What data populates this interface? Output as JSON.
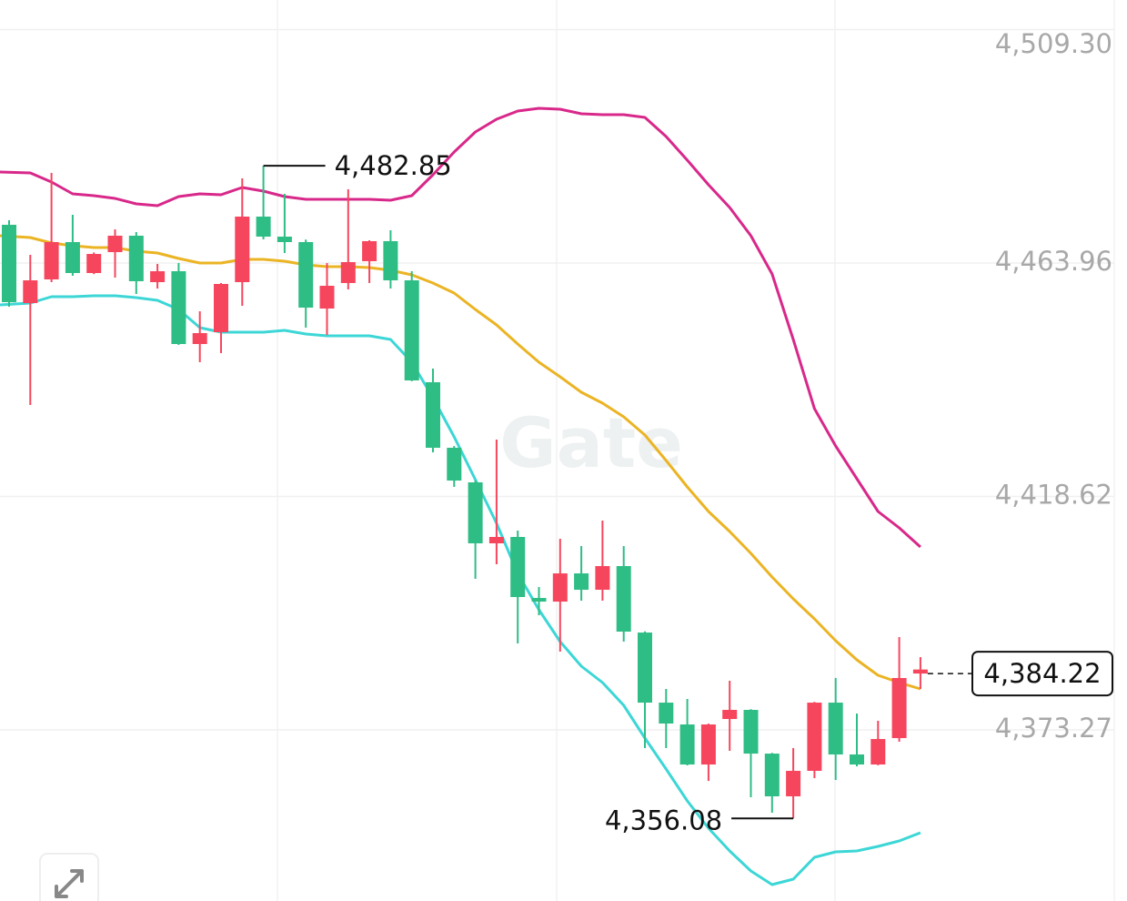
{
  "chart_data": {
    "type": "candlestick",
    "watermark": "Gate",
    "ylim": [
      4340.04,
      4515.04
    ],
    "yticks": [
      {
        "value": 4509.3,
        "label": "4,509.30"
      },
      {
        "value": 4463.96,
        "label": "4,463.96"
      },
      {
        "value": 4418.62,
        "label": "4,418.62"
      },
      {
        "value": 4373.27,
        "label": "4,373.27"
      }
    ],
    "grid": true,
    "up_color": "#2ebd85",
    "down_color": "#f6465d",
    "open": [
      4456.35,
      4460.59,
      4468.02,
      4462.01,
      4465.72,
      4469.26,
      4460.42,
      4462.36,
      4448.22,
      4450.34,
      4459.89,
      4472.97,
      4469.08,
      4468.02,
      4455.29,
      4459.53,
      4464.13,
      4468.2,
      4460.59,
      4441.15,
      4428.07,
      4421.7,
      4409.51,
      4410.75,
      4399.08,
      4398.19,
      4403.67,
      4400.49,
      4405.09,
      4392.36,
      4378.57,
      4374.51,
      4366.55,
      4374.33,
      4377.16,
      4368.67,
      4360.37,
      4365.32,
      4378.57,
      4368.5,
      4366.55,
      4371.5,
      4383.35,
      4385.0
    ],
    "high": [
      4472.26,
      4465.54,
      4481.45,
      4473.32,
      4466.0,
      4470.49,
      4469.96,
      4463.78,
      4463.95,
      4454.58,
      4460.07,
      4480.39,
      4482.85,
      4477.39,
      4468.5,
      4463.95,
      4478.27,
      4468.37,
      4470.32,
      4462.36,
      4443.45,
      4428.4,
      4421.7,
      4429.66,
      4411.98,
      4401.02,
      4410.39,
      4408.98,
      4413.93,
      4408.98,
      4392.4,
      4381.22,
      4379.28,
      4374.5,
      4382.82,
      4377.3,
      4368.8,
      4369.73,
      4378.7,
      4383.35,
      4376.45,
      4375.04,
      4391.3,
      4387.41
    ],
    "low": [
      4455.47,
      4436.38,
      4460.24,
      4461.48,
      4461.8,
      4461.12,
      4457.94,
      4459.0,
      4448.04,
      4444.69,
      4446.45,
      4455.64,
      4468.55,
      4465.9,
      4451.4,
      4449.99,
      4458.83,
      4460.07,
      4459.0,
      4441.0,
      4427.18,
      4420.47,
      4402.61,
      4405.44,
      4390.06,
      4395.54,
      4388.47,
      4398.37,
      4398.37,
      4390.42,
      4369.73,
      4369.73,
      4366.37,
      4363.37,
      4369.2,
      4360.19,
      4357.18,
      4356.08,
      4363.9,
      4363.55,
      4366.2,
      4366.4,
      4370.97,
      4381.22
    ],
    "close": [
      4471.38,
      4456.17,
      4460.77,
      4468.02,
      4462.01,
      4466.07,
      4469.26,
      4460.24,
      4462.36,
      4448.22,
      4450.52,
      4460.24,
      4472.97,
      4469.08,
      4468.02,
      4455.11,
      4460.07,
      4464.31,
      4468.2,
      4460.59,
      4440.8,
      4428.07,
      4421.35,
      4409.51,
      4410.75,
      4398.9,
      4398.19,
      4403.67,
      4400.49,
      4405.09,
      4392.18,
      4378.57,
      4374.33,
      4366.55,
      4375.39,
      4377.16,
      4368.67,
      4360.37,
      4365.32,
      4378.57,
      4368.5,
      4366.55,
      4371.68,
      4384.22
    ],
    "lines": [
      {
        "color": "#d8288a",
        "values": [
          4481.63,
          4481.45,
          4479.69,
          4477.39,
          4477.03,
          4476.5,
          4475.44,
          4475.09,
          4476.86,
          4477.39,
          4477.21,
          4478.63,
          4477.92,
          4476.86,
          4476.33,
          4476.33,
          4476.33,
          4476.33,
          4476.15,
          4477.03,
          4481.1,
          4485.52,
          4489.41,
          4491.88,
          4493.47,
          4494.0,
          4493.83,
          4492.94,
          4492.77,
          4492.77,
          4492.24,
          4488.52,
          4483.93,
          4479.16,
          4474.74,
          4469.26,
          4461.83,
          4449.1,
          4435.67,
          4428.42,
          4422.06,
          4415.69,
          4412.51,
          4408.8
        ]
      },
      {
        "color": "#ebb424",
        "values": [
          4469.26,
          4468.9,
          4467.84,
          4467.31,
          4466.96,
          4466.96,
          4466.25,
          4465.9,
          4464.84,
          4463.95,
          4463.95,
          4464.66,
          4464.66,
          4464.31,
          4463.6,
          4463.25,
          4463.25,
          4463.07,
          4462.54,
          4461.66,
          4460.06,
          4458.12,
          4454.94,
          4451.93,
          4448.22,
          4444.69,
          4441.86,
          4438.85,
          4436.73,
          4434.08,
          4430.54,
          4425.59,
          4420.47,
          4415.69,
          4411.81,
          4407.56,
          4402.97,
          4398.72,
          4394.84,
          4390.59,
          4386.88,
          4383.88,
          4382.46,
          4381.22
        ]
      },
      {
        "color": "#3dd6d6",
        "values": [
          4455.82,
          4456.17,
          4457.41,
          4457.41,
          4457.59,
          4457.59,
          4457.24,
          4456.71,
          4454.94,
          4451.4,
          4450.52,
          4450.52,
          4450.52,
          4450.87,
          4450.16,
          4449.81,
          4449.81,
          4449.81,
          4449.1,
          4444.69,
          4437.79,
          4430.19,
          4421.88,
          4413.4,
          4403.67,
          4396.6,
          4390.42,
          4385.64,
          4382.46,
          4378.04,
          4371.68,
          4365.67,
          4359.48,
          4354.18,
          4349.76,
          4345.87,
          4343.22,
          4344.28,
          4348.52,
          4349.58,
          4349.76,
          4350.64,
          4351.7,
          4353.29
        ]
      }
    ],
    "max_marker": {
      "value": 4482.85,
      "label": "4,482.85"
    },
    "min_marker": {
      "value": 4356.08,
      "label": "4,356.08"
    },
    "last_price": {
      "value": 4384.22,
      "label": "4,384.22"
    }
  }
}
